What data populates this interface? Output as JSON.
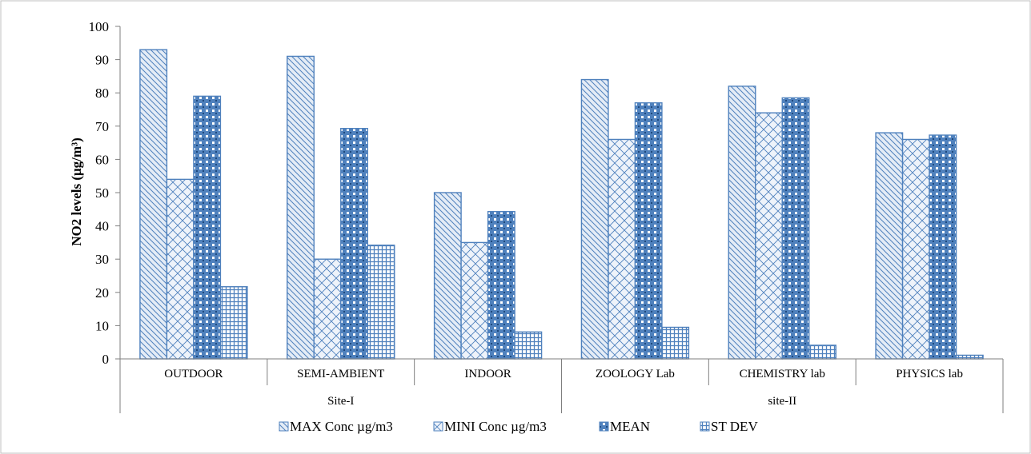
{
  "chart_data": {
    "type": "bar",
    "ylabel": "NO2 levels (μg/m³)",
    "ylim": [
      0,
      100
    ],
    "ytick_step": 10,
    "yticks": [
      "0",
      "10",
      "20",
      "30",
      "40",
      "50",
      "60",
      "70",
      "80",
      "90",
      "100"
    ],
    "categories": [
      "OUTDOOR",
      "SEMI-AMBIENT",
      "INDOOR",
      "ZOOLOGY Lab",
      "CHEMISTRY lab",
      "PHYSICS lab"
    ],
    "groups": [
      {
        "label": "Site-I",
        "categories": [
          "OUTDOOR",
          "SEMI-AMBIENT",
          "INDOOR"
        ]
      },
      {
        "label": "site-II",
        "categories": [
          "ZOOLOGY Lab",
          "CHEMISTRY lab",
          "PHYSICS lab"
        ]
      }
    ],
    "series": [
      {
        "name": "MAX Conc µg/m3",
        "values": [
          93,
          91,
          50,
          84,
          82,
          68
        ]
      },
      {
        "name": "MINI Conc µg/m3",
        "values": [
          54,
          30,
          35,
          66,
          74,
          66
        ]
      },
      {
        "name": "MEAN",
        "values": [
          79,
          69.3,
          44.3,
          77,
          78.5,
          67.3
        ]
      },
      {
        "name": "ST DEV",
        "values": [
          21.7,
          34.2,
          8.1,
          9.5,
          4.1,
          1.1
        ]
      }
    ],
    "legend_position": "bottom",
    "grid": false,
    "colors": {
      "bar_stroke": "#4f81bd",
      "max_fill": "#c9d7ea",
      "mini_fill": "#dbe5f1",
      "mean_fill": "#4f81bd",
      "stdev_fill": "#8eaad6",
      "axis": "#7f7f7f",
      "frame": "#bfbfbf"
    }
  }
}
